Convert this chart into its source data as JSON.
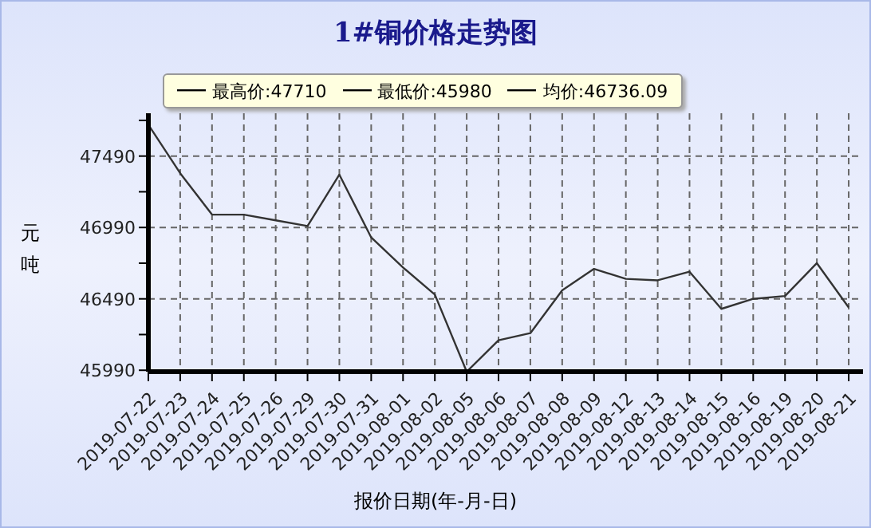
{
  "chart_data": {
    "type": "line",
    "title": "1#铜价格走势图",
    "xlabel": "报价日期(年-月-日)",
    "ylabel": "元吨",
    "annotations": [
      "最高价:47710",
      "最低价:45980",
      "均价:46736.09"
    ],
    "categories": [
      "2019-07-22",
      "2019-07-23",
      "2019-07-24",
      "2019-07-25",
      "2019-07-26",
      "2019-07-29",
      "2019-07-30",
      "2019-07-31",
      "2019-08-01",
      "2019-08-02",
      "2019-08-05",
      "2019-08-06",
      "2019-08-07",
      "2019-08-08",
      "2019-08-09",
      "2019-08-12",
      "2019-08-13",
      "2019-08-14",
      "2019-08-15",
      "2019-08-16",
      "2019-08-19",
      "2019-08-20",
      "2019-08-21"
    ],
    "series": [
      {
        "color": "#333333",
        "values": [
          47710,
          47370,
          47080,
          47080,
          47040,
          47000,
          47360,
          46920,
          46710,
          46520,
          45980,
          46200,
          46250,
          46550,
          46700,
          46630,
          46620,
          46680,
          46420,
          46490,
          46510,
          46740,
          46430
        ]
      }
    ],
    "ylim": [
      45980,
      47790
    ],
    "yticks": [
      45990,
      {
        "value": 46240,
        "label": null
      },
      46490,
      {
        "value": 46740,
        "label": null
      },
      46990,
      {
        "value": 47240,
        "label": null
      },
      47490,
      {
        "value": 47740,
        "label": null
      }
    ],
    "grid": true,
    "marker": "none",
    "line_style": "solid"
  }
}
